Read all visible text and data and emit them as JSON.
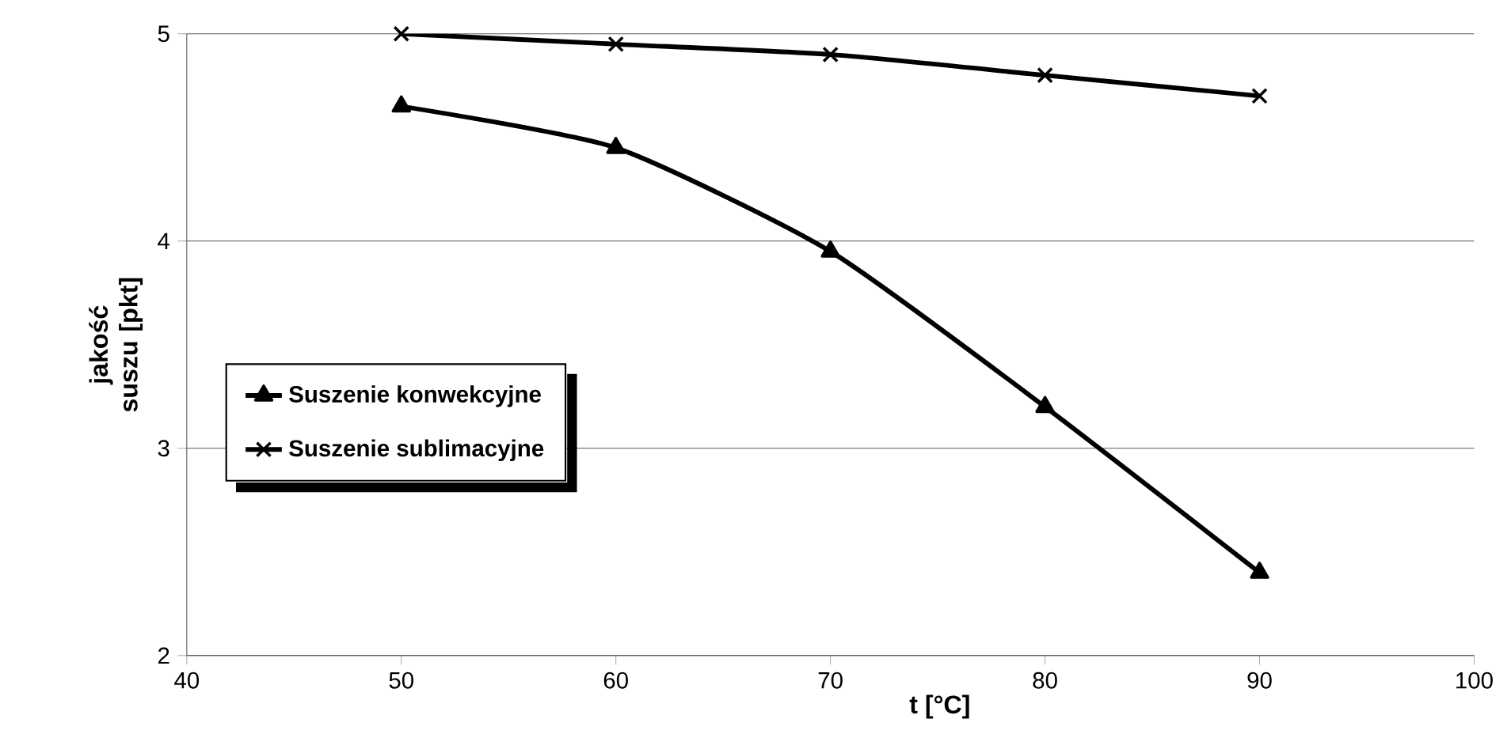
{
  "chart_data": {
    "type": "line",
    "xlabel": "t [°C]",
    "ylabel": "jakość suszu [pkt]",
    "x": [
      50,
      60,
      70,
      80,
      90
    ],
    "series": [
      {
        "name": "Suszenie konwekcyjne",
        "color": "#000000",
        "values": [
          4.65,
          4.45,
          3.95,
          3.2,
          2.4
        ],
        "marker": "triangle"
      },
      {
        "name": "Suszenie sublimacyjne",
        "color": "#000000",
        "values": [
          5.0,
          4.95,
          4.9,
          4.8,
          4.7
        ],
        "marker": "cross"
      }
    ],
    "xlim": [
      40,
      100
    ],
    "ylim": [
      2,
      5
    ],
    "xticks": [
      40,
      50,
      60,
      70,
      80,
      90,
      100
    ],
    "yticks": [
      2,
      3,
      4,
      5
    ],
    "grid": "y",
    "legend": "left",
    "line_style": "solid"
  }
}
